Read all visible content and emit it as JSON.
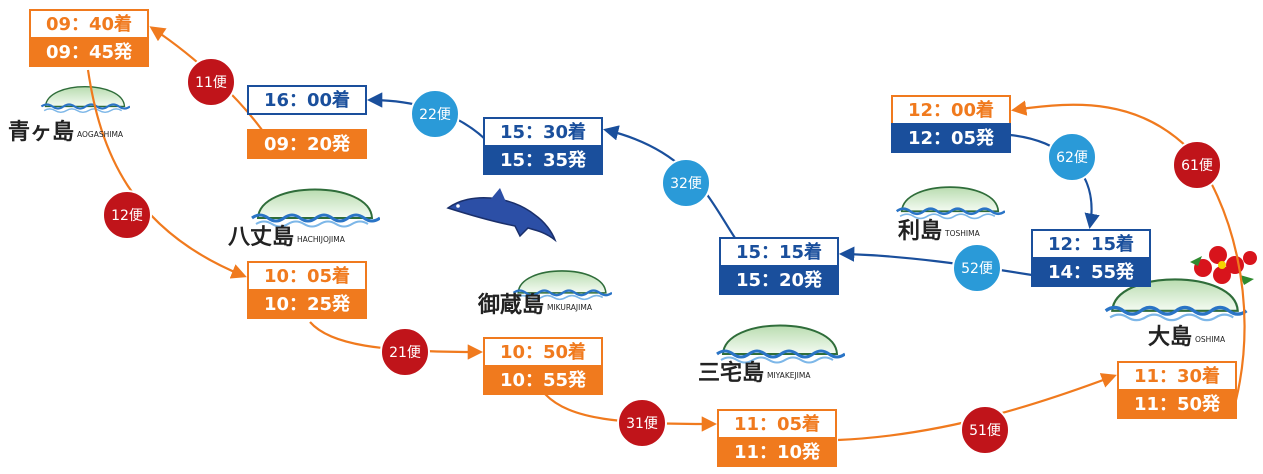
{
  "islands": [
    {
      "name": "青ヶ島",
      "romaji": "AOGASHIMA"
    },
    {
      "name": "八丈島",
      "romaji": "HACHIJOJIMA"
    },
    {
      "name": "御蔵島",
      "romaji": "MIKURAJIMA"
    },
    {
      "name": "三宅島",
      "romaji": "MIYAKEJIMA"
    },
    {
      "name": "利島",
      "romaji": "TOSHIMA"
    },
    {
      "name": "大島",
      "romaji": "OSHIMA"
    }
  ],
  "timetables": [
    {
      "lines": [
        "09：40着",
        "09：45発"
      ]
    },
    {
      "lines": [
        "09：20発"
      ]
    },
    {
      "lines": [
        "10：05着",
        "10：25発"
      ]
    },
    {
      "lines": [
        "10：50着",
        "10：55発"
      ]
    },
    {
      "lines": [
        "11：05着",
        "11：10発"
      ]
    },
    {
      "lines": [
        "11：30着",
        "11：50発"
      ]
    },
    {
      "lines": [
        "12：00着",
        "12：05発"
      ]
    },
    {
      "lines": [
        "12：15着",
        "14：55発"
      ]
    },
    {
      "lines": [
        "15：15着",
        "15：20発"
      ]
    },
    {
      "lines": [
        "15：30着",
        "15：35発"
      ]
    },
    {
      "lines": [
        "16：00着"
      ]
    }
  ],
  "flights": [
    "11便",
    "12便",
    "21便",
    "31便",
    "51便",
    "61便",
    "62便",
    "52便",
    "32便",
    "22便"
  ]
}
